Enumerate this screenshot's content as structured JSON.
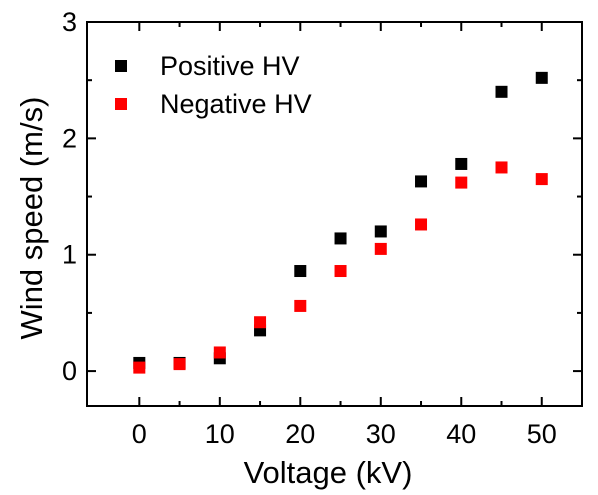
{
  "chart_data": {
    "type": "scatter",
    "title": "",
    "xlabel": "Voltage (kV)",
    "ylabel": "Wind speed (m/s)",
    "xlim": [
      -6.5,
      55
    ],
    "ylim": [
      -0.3,
      3.0
    ],
    "xticks": [
      0,
      10,
      20,
      30,
      40,
      50
    ],
    "yticks": [
      0,
      1,
      2,
      3
    ],
    "minor_xticks": [
      5,
      15,
      25,
      35,
      45
    ],
    "minor_yticks": [
      0.5,
      1.5,
      2.5
    ],
    "grid": false,
    "legend_position": "top-left",
    "x": [
      0,
      5,
      10,
      15,
      20,
      25,
      30,
      35,
      40,
      45,
      50
    ],
    "series": [
      {
        "name": "Positive HV",
        "color": "#000000",
        "marker": "square",
        "values": [
          0.07,
          0.07,
          0.11,
          0.35,
          0.86,
          1.14,
          1.2,
          1.63,
          1.78,
          2.4,
          2.52
        ]
      },
      {
        "name": "Negative HV",
        "color": "#ff0000",
        "marker": "square",
        "values": [
          0.03,
          0.06,
          0.16,
          0.42,
          0.56,
          0.86,
          1.05,
          1.26,
          1.62,
          1.75,
          1.65
        ]
      }
    ]
  }
}
